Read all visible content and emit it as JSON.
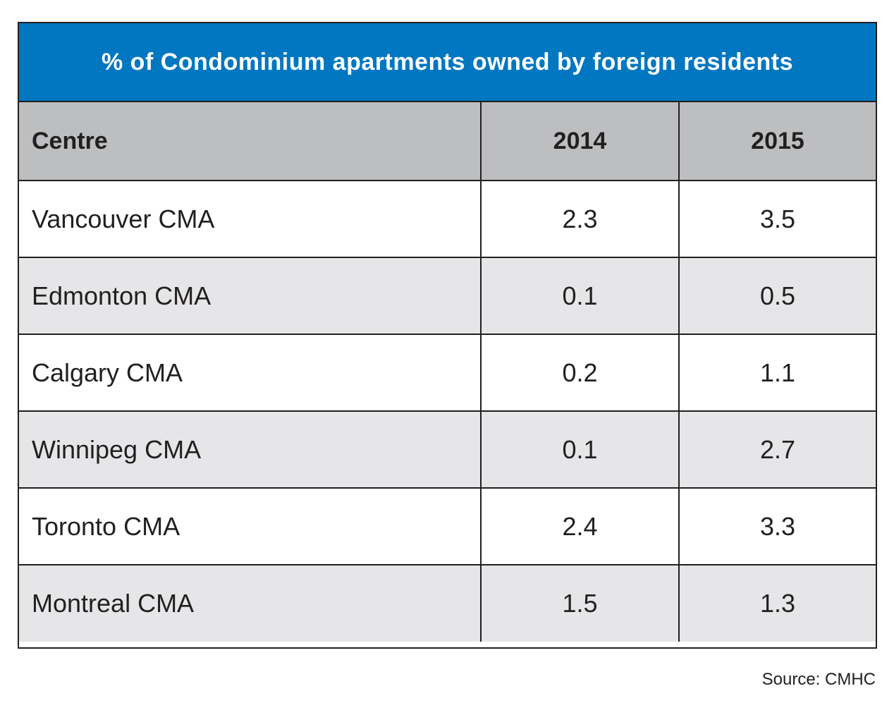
{
  "chart_data": {
    "type": "table",
    "title": "% of Condominium apartments owned by foreign residents",
    "columns": [
      "Centre",
      "2014",
      "2015"
    ],
    "rows": [
      {
        "centre": "Vancouver CMA",
        "y2014": "2.3",
        "y2015": "3.5"
      },
      {
        "centre": "Edmonton CMA",
        "y2014": "0.1",
        "y2015": "0.5"
      },
      {
        "centre": "Calgary CMA",
        "y2014": "0.2",
        "y2015": "1.1"
      },
      {
        "centre": "Winnipeg CMA",
        "y2014": "0.1",
        "y2015": "2.7"
      },
      {
        "centre": "Toronto CMA",
        "y2014": "2.4",
        "y2015": "3.3"
      },
      {
        "centre": "Montreal CMA",
        "y2014": "1.5",
        "y2015": "1.3"
      }
    ],
    "source": "Source: CMHC"
  },
  "colors": {
    "title_background": "#0077c0",
    "header_background": "#bdbec0",
    "alt_row_background": "#e6e6e8"
  }
}
